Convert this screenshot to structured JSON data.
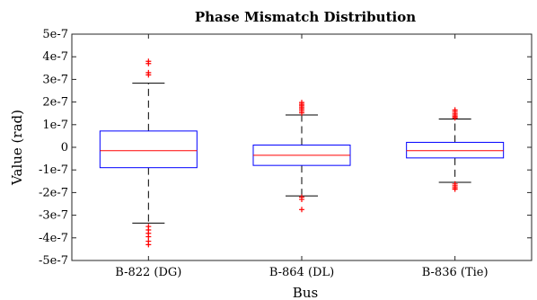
{
  "chart_data": {
    "type": "box",
    "title": "Phase Mismatch Distribution",
    "xlabel": "Bus",
    "ylabel": "Value (rad)",
    "ylim": [
      -5e-07,
      5e-07
    ],
    "yticks": [
      -5e-07,
      -4e-07,
      -3e-07,
      -2e-07,
      -1e-07,
      0,
      1e-07,
      2e-07,
      3e-07,
      4e-07,
      5e-07
    ],
    "ytick_labels": [
      "-5e-7",
      "-4e-7",
      "-3e-7",
      "-2e-7",
      "-1e-7",
      "0",
      "1e-7",
      "2e-7",
      "3e-7",
      "4e-7",
      "5e-7"
    ],
    "categories": [
      "B-822 (DG)",
      "B-864 (DL)",
      "B-836 (Tie)"
    ],
    "boxes": [
      {
        "category": "B-822 (DG)",
        "whisker_low": -3.35e-07,
        "q1": -9e-08,
        "median": -1.5e-08,
        "q3": 7.2e-08,
        "whisker_high": 2.83e-07,
        "outliers": [
          3.8e-07,
          3.7e-07,
          3.3e-07,
          3.2e-07,
          -3.5e-07,
          -3.65e-07,
          -3.8e-07,
          -3.95e-07,
          -4.15e-07,
          -4.3e-07
        ]
      },
      {
        "category": "B-864 (DL)",
        "whisker_low": -2.15e-07,
        "q1": -8e-08,
        "median": -3.5e-08,
        "q3": 1e-08,
        "whisker_high": 1.43e-07,
        "outliers": [
          1.98e-07,
          1.9e-07,
          1.83e-07,
          1.75e-07,
          1.68e-07,
          1.6e-07,
          1.52e-07,
          -2.2e-07,
          -2.3e-07,
          -2.75e-07
        ]
      },
      {
        "category": "B-836 (Tie)",
        "whisker_low": -1.55e-07,
        "q1": -4.7e-08,
        "median": -1.5e-08,
        "q3": 2.2e-08,
        "whisker_high": 1.25e-07,
        "outliers": [
          1.65e-07,
          1.58e-07,
          1.5e-07,
          1.43e-07,
          1.36e-07,
          1.3e-07,
          -1.62e-07,
          -1.7e-07,
          -1.78e-07,
          -1.85e-07
        ]
      }
    ],
    "colors": {
      "box": "#0000ff",
      "median": "#ff0000",
      "whisker": "#000000",
      "outlier": "#ff0000",
      "axes": "#262626"
    },
    "grid": false,
    "legend": "none"
  }
}
